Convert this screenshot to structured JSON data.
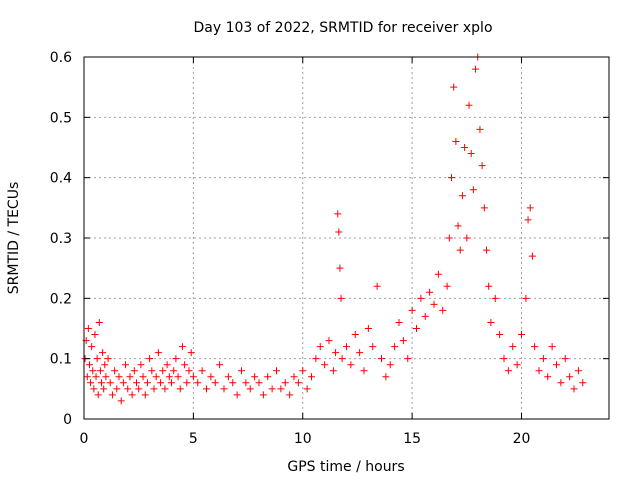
{
  "chart_data": {
    "type": "scatter",
    "title": "Day 103 of 2022, SRMTID for receiver xplo",
    "xlabel": "GPS time / hours",
    "ylabel": "SRMTID / TECUs",
    "xlim": [
      0,
      24
    ],
    "ylim": [
      0,
      0.6
    ],
    "x_ticks": [
      0,
      5,
      10,
      15,
      20
    ],
    "x_tick_labels": [
      "0",
      "5",
      "10",
      "15",
      "20"
    ],
    "y_ticks": [
      0,
      0.1,
      0.2,
      0.3,
      0.4,
      0.5,
      0.6
    ],
    "y_tick_labels": [
      "0",
      "0.1",
      "0.2",
      "0.3",
      "0.4",
      "0.5",
      "0.6"
    ],
    "grid": true,
    "marker": "plus",
    "series": [
      {
        "name": "SRMTID",
        "color": "#ff0000",
        "points": [
          [
            0.05,
            0.1
          ],
          [
            0.1,
            0.13
          ],
          [
            0.15,
            0.07
          ],
          [
            0.2,
            0.15
          ],
          [
            0.25,
            0.09
          ],
          [
            0.3,
            0.06
          ],
          [
            0.35,
            0.12
          ],
          [
            0.4,
            0.08
          ],
          [
            0.45,
            0.05
          ],
          [
            0.5,
            0.14
          ],
          [
            0.55,
            0.07
          ],
          [
            0.6,
            0.1
          ],
          [
            0.65,
            0.04
          ],
          [
            0.7,
            0.16
          ],
          [
            0.75,
            0.08
          ],
          [
            0.8,
            0.06
          ],
          [
            0.85,
            0.11
          ],
          [
            0.9,
            0.05
          ],
          [
            0.95,
            0.09
          ],
          [
            1.0,
            0.07
          ],
          [
            1.1,
            0.1
          ],
          [
            1.2,
            0.06
          ],
          [
            1.3,
            0.04
          ],
          [
            1.4,
            0.08
          ],
          [
            1.5,
            0.05
          ],
          [
            1.6,
            0.07
          ],
          [
            1.7,
            0.03
          ],
          [
            1.8,
            0.06
          ],
          [
            1.9,
            0.09
          ],
          [
            2.0,
            0.05
          ],
          [
            2.1,
            0.07
          ],
          [
            2.2,
            0.04
          ],
          [
            2.3,
            0.08
          ],
          [
            2.4,
            0.06
          ],
          [
            2.5,
            0.05
          ],
          [
            2.6,
            0.09
          ],
          [
            2.7,
            0.07
          ],
          [
            2.8,
            0.04
          ],
          [
            2.9,
            0.06
          ],
          [
            3.0,
            0.1
          ],
          [
            3.1,
            0.08
          ],
          [
            3.2,
            0.05
          ],
          [
            3.3,
            0.07
          ],
          [
            3.4,
            0.11
          ],
          [
            3.5,
            0.06
          ],
          [
            3.6,
            0.08
          ],
          [
            3.7,
            0.05
          ],
          [
            3.8,
            0.09
          ],
          [
            3.9,
            0.07
          ],
          [
            4.0,
            0.06
          ],
          [
            4.1,
            0.08
          ],
          [
            4.2,
            0.1
          ],
          [
            4.3,
            0.07
          ],
          [
            4.4,
            0.05
          ],
          [
            4.5,
            0.12
          ],
          [
            4.6,
            0.09
          ],
          [
            4.7,
            0.06
          ],
          [
            4.8,
            0.08
          ],
          [
            4.9,
            0.11
          ],
          [
            5.0,
            0.07
          ],
          [
            5.2,
            0.06
          ],
          [
            5.4,
            0.08
          ],
          [
            5.6,
            0.05
          ],
          [
            5.8,
            0.07
          ],
          [
            6.0,
            0.06
          ],
          [
            6.2,
            0.09
          ],
          [
            6.4,
            0.05
          ],
          [
            6.6,
            0.07
          ],
          [
            6.8,
            0.06
          ],
          [
            7.0,
            0.04
          ],
          [
            7.2,
            0.08
          ],
          [
            7.4,
            0.06
          ],
          [
            7.6,
            0.05
          ],
          [
            7.8,
            0.07
          ],
          [
            8.0,
            0.06
          ],
          [
            8.2,
            0.04
          ],
          [
            8.4,
            0.07
          ],
          [
            8.6,
            0.05
          ],
          [
            8.8,
            0.08
          ],
          [
            9.0,
            0.05
          ],
          [
            9.2,
            0.06
          ],
          [
            9.4,
            0.04
          ],
          [
            9.6,
            0.07
          ],
          [
            9.8,
            0.06
          ],
          [
            10.0,
            0.08
          ],
          [
            10.2,
            0.05
          ],
          [
            10.4,
            0.07
          ],
          [
            10.6,
            0.1
          ],
          [
            10.8,
            0.12
          ],
          [
            11.0,
            0.09
          ],
          [
            11.2,
            0.13
          ],
          [
            11.4,
            0.08
          ],
          [
            11.5,
            0.11
          ],
          [
            11.6,
            0.34
          ],
          [
            11.65,
            0.31
          ],
          [
            11.7,
            0.25
          ],
          [
            11.75,
            0.2
          ],
          [
            11.8,
            0.1
          ],
          [
            12.0,
            0.12
          ],
          [
            12.2,
            0.09
          ],
          [
            12.4,
            0.14
          ],
          [
            12.6,
            0.11
          ],
          [
            12.8,
            0.08
          ],
          [
            13.0,
            0.15
          ],
          [
            13.2,
            0.12
          ],
          [
            13.4,
            0.22
          ],
          [
            13.6,
            0.1
          ],
          [
            13.8,
            0.07
          ],
          [
            14.0,
            0.09
          ],
          [
            14.2,
            0.12
          ],
          [
            14.4,
            0.16
          ],
          [
            14.6,
            0.13
          ],
          [
            14.8,
            0.1
          ],
          [
            15.0,
            0.18
          ],
          [
            15.2,
            0.15
          ],
          [
            15.4,
            0.2
          ],
          [
            15.6,
            0.17
          ],
          [
            15.8,
            0.21
          ],
          [
            16.0,
            0.19
          ],
          [
            16.2,
            0.24
          ],
          [
            16.4,
            0.18
          ],
          [
            16.6,
            0.22
          ],
          [
            16.7,
            0.3
          ],
          [
            16.8,
            0.4
          ],
          [
            16.9,
            0.55
          ],
          [
            17.0,
            0.46
          ],
          [
            17.1,
            0.32
          ],
          [
            17.2,
            0.28
          ],
          [
            17.3,
            0.37
          ],
          [
            17.4,
            0.45
          ],
          [
            17.5,
            0.3
          ],
          [
            17.6,
            0.52
          ],
          [
            17.7,
            0.44
          ],
          [
            17.8,
            0.38
          ],
          [
            17.9,
            0.58
          ],
          [
            18.0,
            0.6
          ],
          [
            18.1,
            0.48
          ],
          [
            18.2,
            0.42
          ],
          [
            18.3,
            0.35
          ],
          [
            18.4,
            0.28
          ],
          [
            18.5,
            0.22
          ],
          [
            18.6,
            0.16
          ],
          [
            18.8,
            0.2
          ],
          [
            19.0,
            0.14
          ],
          [
            19.2,
            0.1
          ],
          [
            19.4,
            0.08
          ],
          [
            19.6,
            0.12
          ],
          [
            19.8,
            0.09
          ],
          [
            20.0,
            0.14
          ],
          [
            20.2,
            0.2
          ],
          [
            20.3,
            0.33
          ],
          [
            20.4,
            0.35
          ],
          [
            20.5,
            0.27
          ],
          [
            20.6,
            0.12
          ],
          [
            20.8,
            0.08
          ],
          [
            21.0,
            0.1
          ],
          [
            21.2,
            0.07
          ],
          [
            21.4,
            0.12
          ],
          [
            21.6,
            0.09
          ],
          [
            21.8,
            0.06
          ],
          [
            22.0,
            0.1
          ],
          [
            22.2,
            0.07
          ],
          [
            22.4,
            0.05
          ],
          [
            22.6,
            0.08
          ],
          [
            22.8,
            0.06
          ]
        ]
      }
    ]
  }
}
